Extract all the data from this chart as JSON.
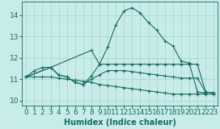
{
  "background_color": "#c8ece9",
  "grid_color": "#a8d8d2",
  "line_color": "#1a6b60",
  "xlim": [
    -0.5,
    23.5
  ],
  "ylim": [
    9.75,
    14.65
  ],
  "xlabel": "Humidex (Indice chaleur)",
  "xlabel_fontsize": 7,
  "xticks": [
    0,
    1,
    2,
    3,
    4,
    5,
    6,
    7,
    8,
    9,
    10,
    11,
    12,
    13,
    14,
    15,
    16,
    17,
    18,
    19,
    20,
    21,
    22,
    23
  ],
  "yticks": [
    10,
    11,
    12,
    13,
    14
  ],
  "tick_fontsize": 6.5,
  "series": [
    {
      "x": [
        0,
        1,
        2,
        3,
        4,
        5,
        6,
        7,
        8,
        9,
        10,
        11,
        12,
        13,
        14,
        15,
        16,
        17,
        18,
        19,
        20,
        21,
        22,
        23
      ],
      "y": [
        11.1,
        11.4,
        11.55,
        11.55,
        11.2,
        11.1,
        10.85,
        10.75,
        11.15,
        11.7,
        12.5,
        13.55,
        14.2,
        14.35,
        14.1,
        13.65,
        13.3,
        12.8,
        12.55,
        11.85,
        11.75,
        10.4,
        10.35,
        null
      ]
    },
    {
      "x": [
        0,
        3,
        8,
        9,
        10,
        11,
        12,
        13,
        14,
        15,
        16,
        17,
        18,
        19,
        20,
        21,
        22,
        23
      ],
      "y": [
        11.1,
        11.55,
        12.35,
        11.7,
        11.7,
        11.7,
        11.7,
        11.7,
        11.7,
        11.7,
        11.7,
        11.7,
        11.7,
        11.7,
        11.7,
        11.7,
        10.4,
        10.35
      ]
    },
    {
      "x": [
        0,
        3,
        4,
        5,
        6,
        7,
        8,
        9,
        10,
        11,
        12,
        13,
        14,
        15,
        16,
        17,
        18,
        19,
        20,
        21,
        22,
        23
      ],
      "y": [
        11.1,
        11.55,
        11.2,
        11.1,
        10.85,
        10.75,
        11.0,
        11.2,
        11.4,
        11.4,
        11.4,
        11.35,
        11.3,
        11.25,
        11.2,
        11.15,
        11.1,
        11.05,
        11.05,
        11.05,
        10.4,
        10.35
      ]
    },
    {
      "x": [
        0,
        1,
        2,
        3,
        4,
        5,
        6,
        7,
        8,
        9,
        10,
        11,
        12,
        13,
        14,
        15,
        16,
        17,
        18,
        19,
        20,
        21,
        22,
        23
      ],
      "y": [
        11.1,
        11.1,
        11.1,
        11.1,
        11.05,
        11.0,
        10.95,
        10.9,
        10.85,
        10.75,
        10.7,
        10.65,
        10.6,
        10.55,
        10.5,
        10.45,
        10.4,
        10.35,
        10.3,
        10.3,
        10.3,
        10.3,
        10.3,
        10.3
      ]
    }
  ]
}
